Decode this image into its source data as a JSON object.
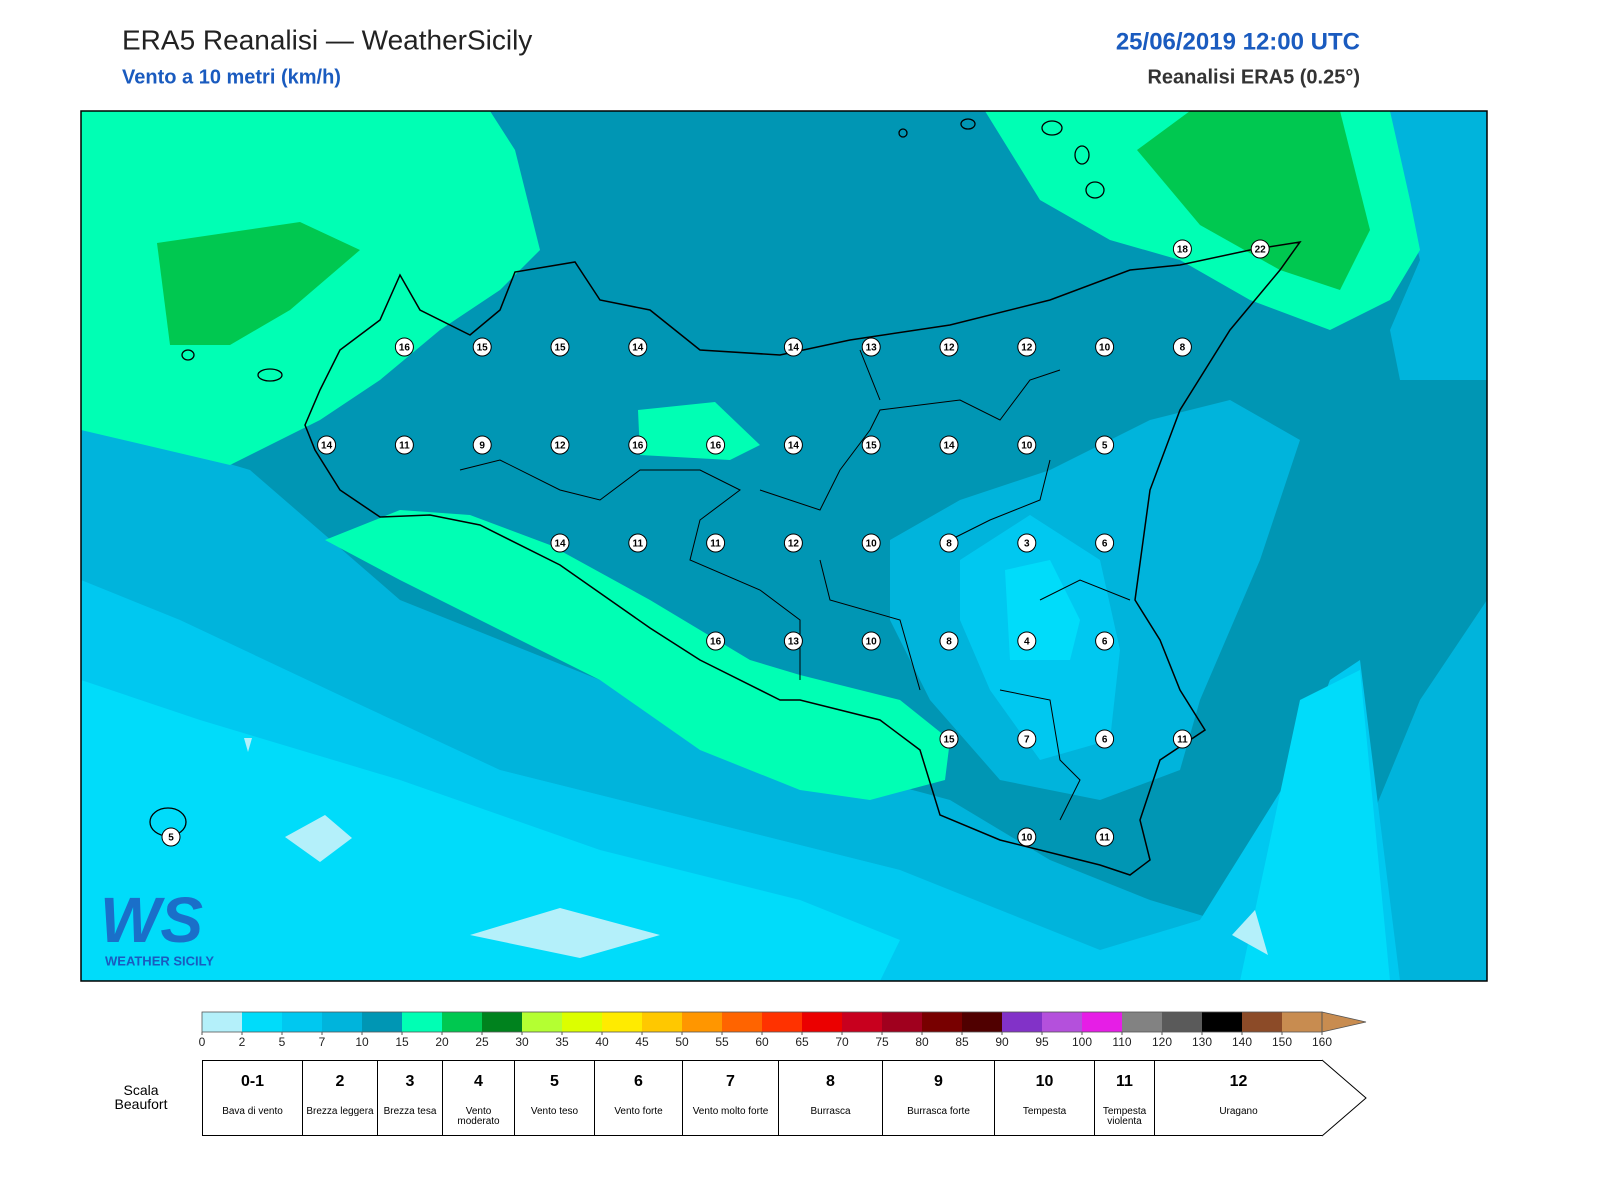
{
  "header": {
    "title": "ERA5 Reanalisi — WeatherSicily",
    "subtitle": "Vento a 10 metri (km/h)",
    "date": "25/06/2019 12:00 UTC",
    "source": "Reanalisi ERA5 (0.25°)"
  },
  "map": {
    "stations": [
      18,
      22,
      16,
      15,
      15,
      14,
      14,
      13,
      12,
      12,
      10,
      8,
      14,
      11,
      9,
      12,
      16,
      16,
      14,
      15,
      14,
      10,
      5,
      14,
      11,
      11,
      12,
      10,
      8,
      3,
      6,
      16,
      13,
      10,
      8,
      4,
      6,
      15,
      7,
      6,
      11,
      5,
      10,
      11
    ]
  },
  "logo": {
    "text": "WS",
    "caption": "WEATHER SICILY"
  },
  "colorbar": {
    "ticks": [
      0,
      2,
      5,
      7,
      10,
      15,
      20,
      25,
      30,
      35,
      40,
      45,
      50,
      55,
      60,
      65,
      70,
      75,
      80,
      85,
      90,
      95,
      100,
      110,
      120,
      130,
      140,
      150,
      160
    ],
    "colors": [
      "#b4f0fa",
      "#00dcfa",
      "#00c8f0",
      "#00b4dc",
      "#0096b4",
      "#00ffb4",
      "#00c850",
      "#00821e",
      "#b4ff32",
      "#dcff00",
      "#ffeb00",
      "#ffc800",
      "#ff9600",
      "#ff6400",
      "#ff3200",
      "#eb0000",
      "#c8001e",
      "#a0001e",
      "#780000",
      "#500000",
      "#8232c8",
      "#b450dc",
      "#e61ee6",
      "#828282",
      "#5a5a5a",
      "#000000",
      "#8c4b28",
      "#c88c50"
    ],
    "extend_color": "#c88c50"
  },
  "beaufort": {
    "title": "Scala Beaufort",
    "levels": [
      {
        "force": "0-1",
        "label": "Bava di vento"
      },
      {
        "force": "2",
        "label": "Brezza leggera"
      },
      {
        "force": "3",
        "label": "Brezza tesa"
      },
      {
        "force": "4",
        "label": "Vento moderato"
      },
      {
        "force": "5",
        "label": "Vento teso"
      },
      {
        "force": "6",
        "label": "Vento forte"
      },
      {
        "force": "7",
        "label": "Vento molto forte"
      },
      {
        "force": "8",
        "label": "Burrasca"
      },
      {
        "force": "9",
        "label": "Burrasca forte"
      },
      {
        "force": "10",
        "label": "Tempesta"
      },
      {
        "force": "11",
        "label": "Tempesta violenta"
      },
      {
        "force": "12",
        "label": "Uragano"
      }
    ]
  }
}
